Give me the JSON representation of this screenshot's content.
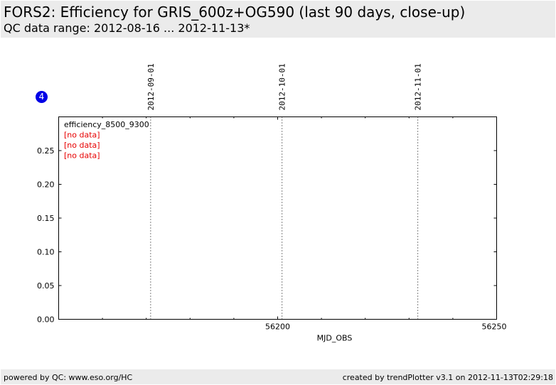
{
  "header": {
    "title": "FORS2: Efficiency for GRIS_600z+OG590 (last 90 days, close-up)",
    "subtitle": "QC data range: 2012-08-16 ... 2012-11-13*"
  },
  "badge": {
    "label": "4",
    "color": "#0000e6"
  },
  "footer": {
    "left": "powered by QC: www.eso.org/HC",
    "right": "created by trendPlotter v3.1 on 2012-11-13T02:29:18"
  },
  "chart_data": {
    "type": "scatter",
    "xlabel": "MJD_OBS",
    "ylabel": "",
    "xlim": [
      56150,
      56250
    ],
    "ylim": [
      0,
      0.3
    ],
    "x_ticks": [
      56200,
      56250
    ],
    "x_tick_labels": [
      "56200",
      "56250"
    ],
    "x_minor_step": 10,
    "y_ticks": [
      0.0,
      0.05,
      0.1,
      0.15,
      0.2,
      0.25
    ],
    "y_tick_labels": [
      "0.00",
      "0.05",
      "0.10",
      "0.15",
      "0.20",
      "0.25"
    ],
    "date_markers": [
      {
        "label": "2012-09-01",
        "x": 56171
      },
      {
        "label": "2012-10-01",
        "x": 56201
      },
      {
        "label": "2012-11-01",
        "x": 56232
      }
    ],
    "legend_position": "top-left",
    "legend": [
      {
        "text": "efficiency_8500_9300",
        "color": "#000000"
      },
      {
        "text": "[no data]",
        "color": "#e60000"
      },
      {
        "text": "[no data]",
        "color": "#e60000"
      },
      {
        "text": "[no data]",
        "color": "#e60000"
      }
    ],
    "series": [],
    "grid": false
  }
}
